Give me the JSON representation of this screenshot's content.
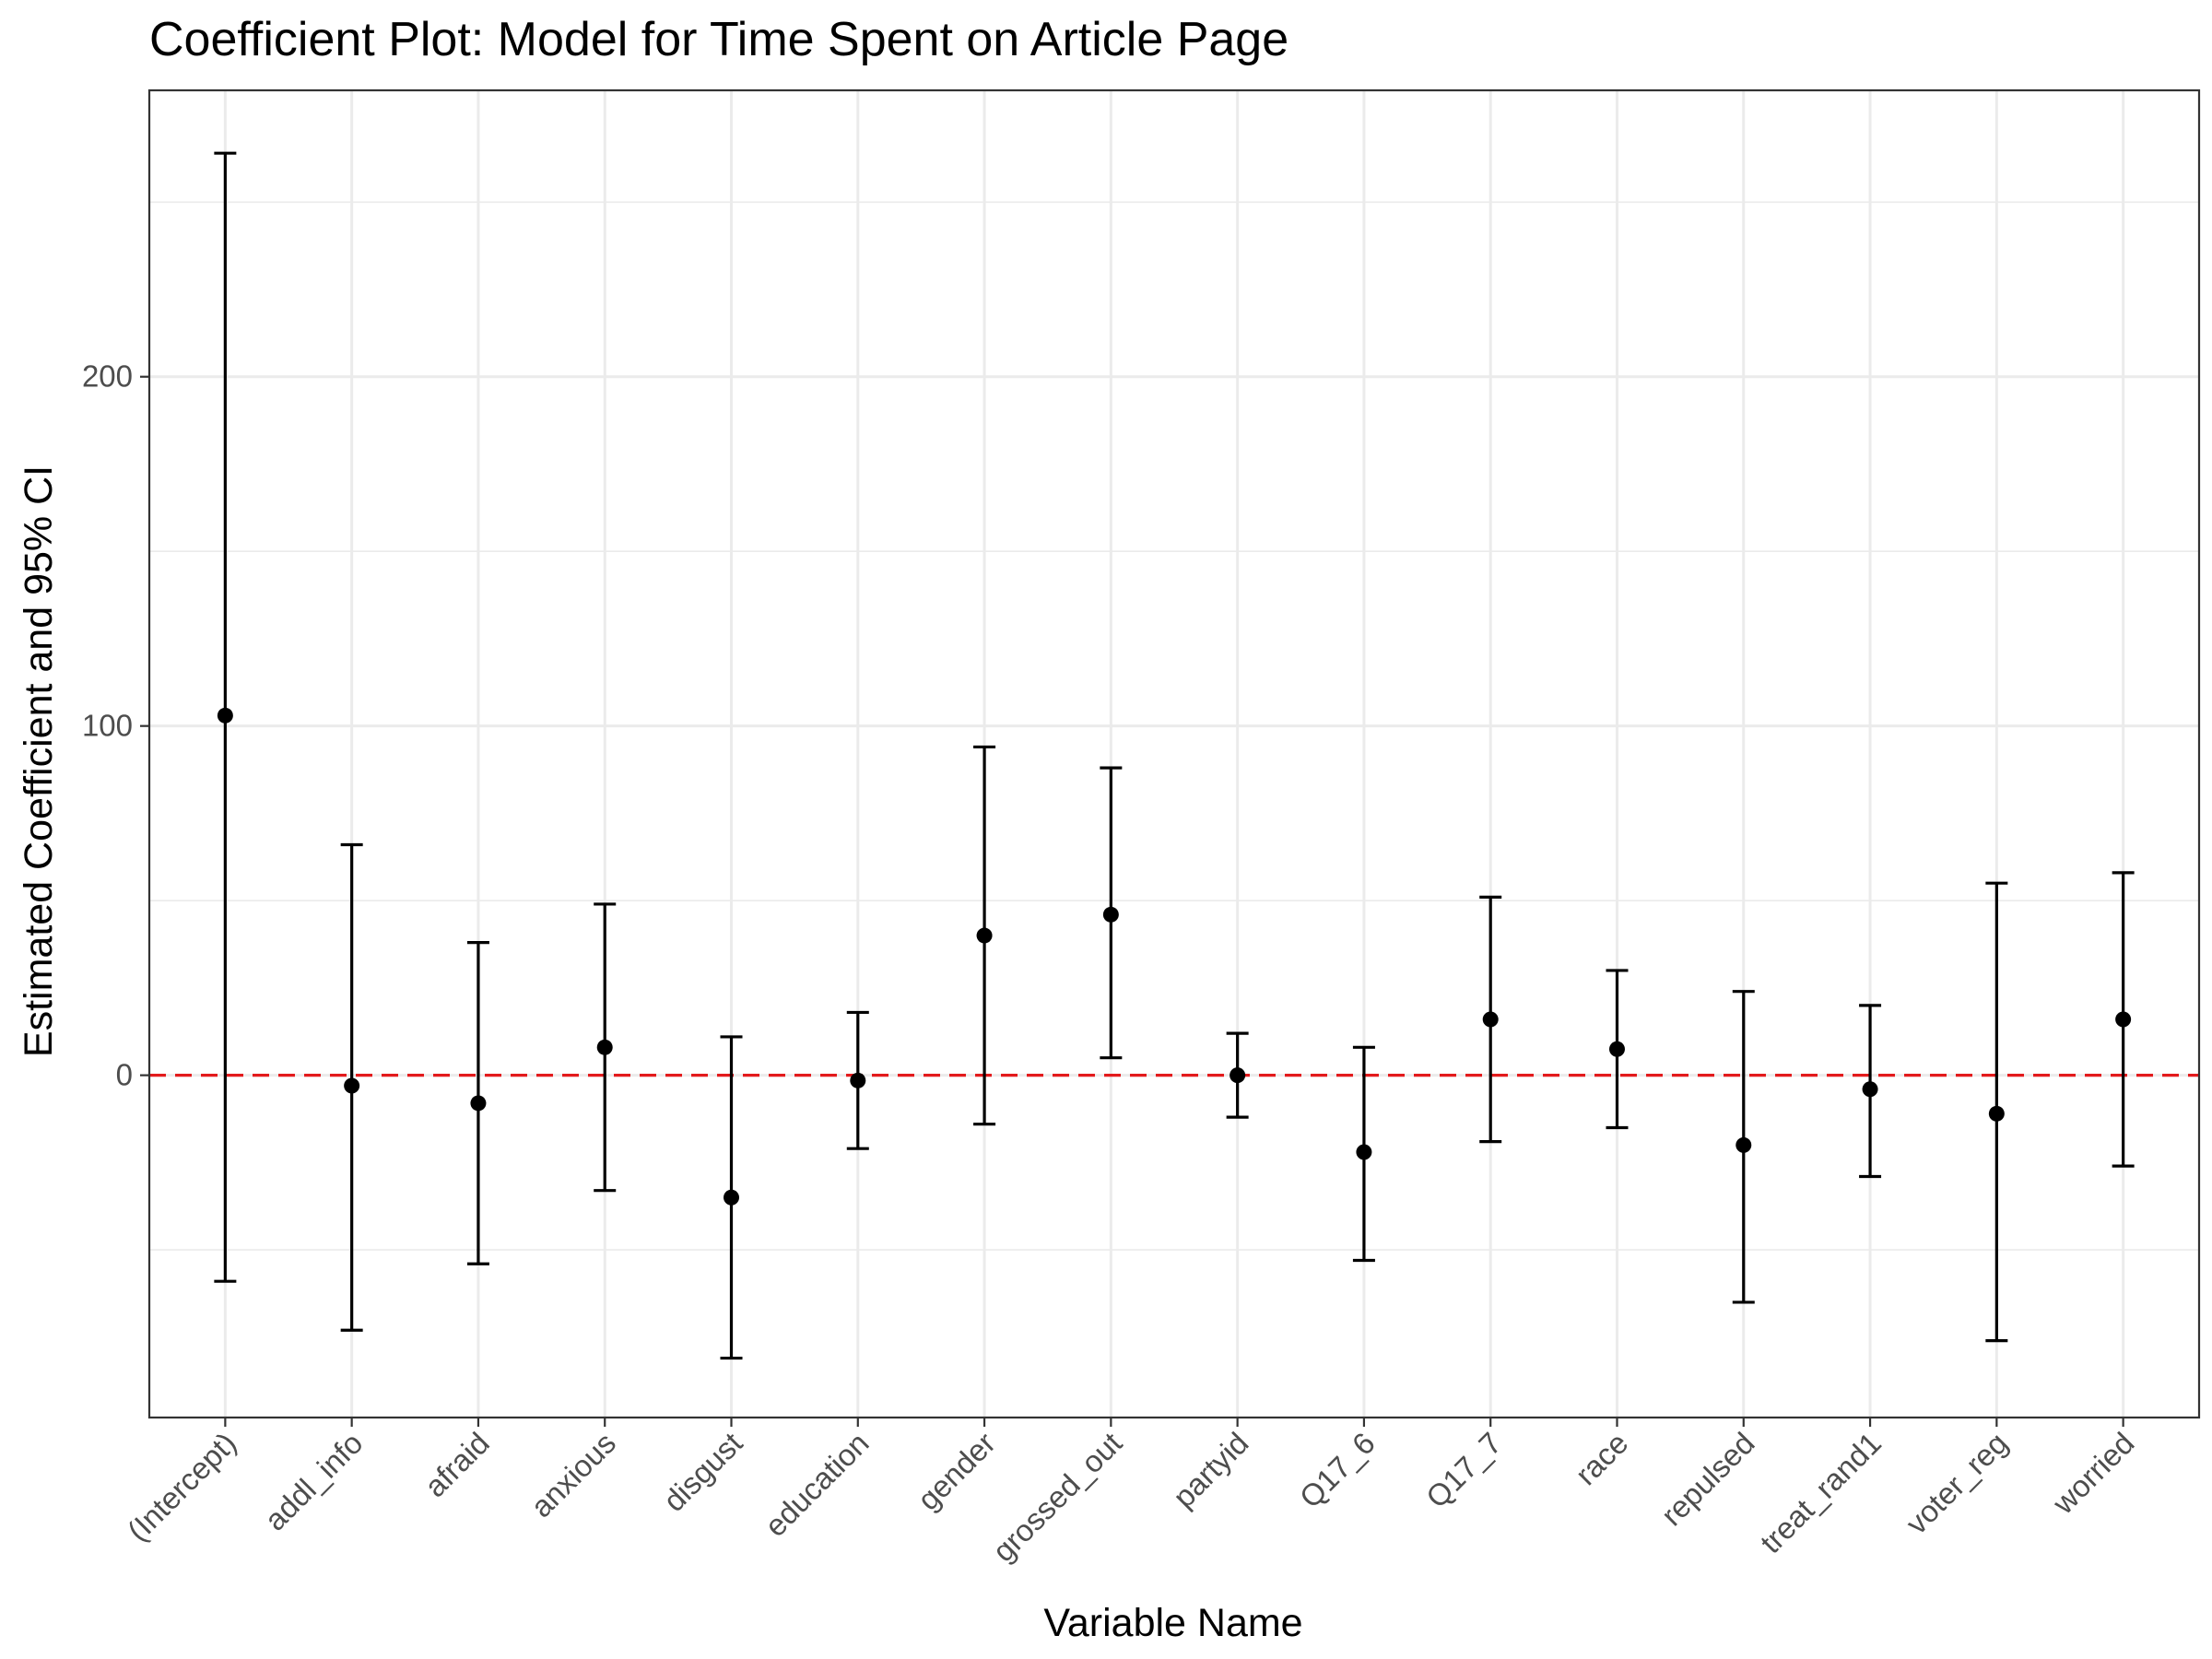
{
  "chart_data": {
    "type": "scatter",
    "title": "Coefficient Plot: Model for Time Spent on Article Page",
    "xlabel": "Variable Name",
    "ylabel": "Estimated Coefficient and 95% CI",
    "ylim": [
      -98,
      282
    ],
    "yticks": [
      0,
      100,
      200
    ],
    "grid": true,
    "reference_line": {
      "y": 0,
      "color": "#e31a1c",
      "style": "dashed"
    },
    "categories": [
      "(Intercept)",
      "addl_info",
      "afraid",
      "anxious",
      "disgust",
      "education",
      "gender",
      "grossed_out",
      "partyid",
      "Q17_6",
      "Q17_7",
      "race",
      "repulsed",
      "treat_rand1",
      "voter_reg",
      "worried"
    ],
    "series": [
      {
        "estimate": [
          103,
          -3,
          -8,
          8,
          -35,
          -1.5,
          40,
          46,
          0,
          -22,
          16,
          7.5,
          -20,
          -4,
          -11,
          16
        ],
        "ci_low": [
          -59,
          -73,
          -54,
          -33,
          -81,
          -21,
          -14,
          5,
          -12,
          -53,
          -19,
          -15,
          -65,
          -29,
          -76,
          -26
        ],
        "ci_high": [
          264,
          66,
          38,
          49,
          11,
          18,
          94,
          88,
          12,
          8,
          51,
          30,
          24,
          20,
          55,
          58
        ]
      }
    ],
    "colors": {
      "points": "#000000",
      "reference_line": "#e31a1c",
      "grid": "#ebebeb",
      "panel_border": "#333333"
    }
  }
}
